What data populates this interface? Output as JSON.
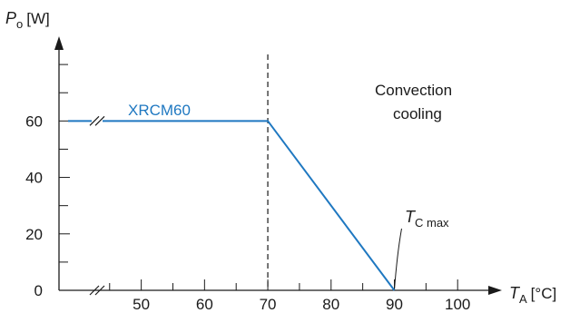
{
  "chart_data": {
    "type": "line",
    "series": [
      {
        "name": "XRCM60",
        "x": [
          40,
          70,
          90
        ],
        "y": [
          60,
          60,
          0
        ],
        "color": "#1f78c1"
      }
    ],
    "x_ticks": [
      50,
      60,
      70,
      80,
      90,
      100
    ],
    "y_ticks": [
      0,
      20,
      40,
      60
    ],
    "xlim": [
      37,
      107
    ],
    "ylim": [
      0,
      90
    ],
    "axis_breaks": {
      "x": true,
      "series": true
    },
    "vline": {
      "x": 70,
      "style": "dashed"
    },
    "x_axis": {
      "symbol": "T",
      "subscript": "A",
      "unit": "[°C]"
    },
    "y_axis": {
      "symbol": "P",
      "subscript": "o",
      "unit": "[W]"
    },
    "annotations": {
      "region_line1": "Convection",
      "region_line2": "cooling",
      "tcmax_symbol": "T",
      "tcmax_subscript": "C max",
      "tcmax_x": 90
    },
    "grid": false,
    "legend": "none"
  }
}
